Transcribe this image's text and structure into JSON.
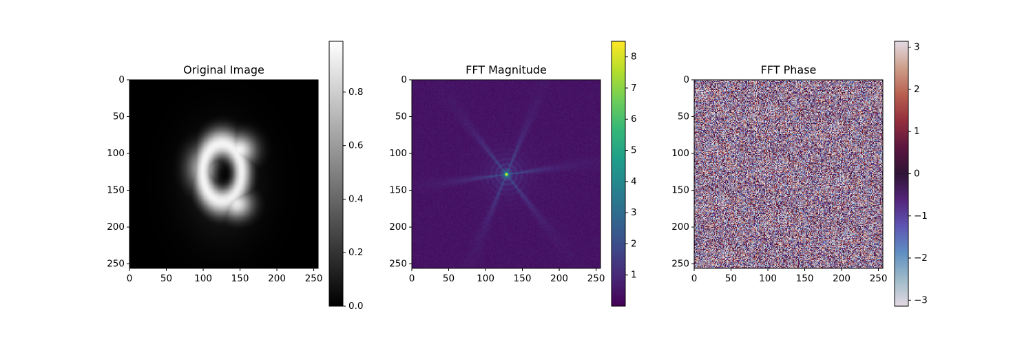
{
  "chart_data": [
    {
      "type": "heatmap",
      "title": "Original Image",
      "colormap": "gray",
      "xlim": [
        0,
        256
      ],
      "ylim": [
        256,
        0
      ],
      "xticks": [
        0,
        50,
        100,
        150,
        200,
        250
      ],
      "yticks": [
        0,
        50,
        100,
        150,
        200,
        250
      ],
      "xtick_labels": [
        "0",
        "50",
        "100",
        "150",
        "200",
        "250"
      ],
      "ytick_labels": [
        "0",
        "50",
        "100",
        "150",
        "200",
        "250"
      ],
      "colorbar": {
        "range": [
          0.0,
          0.99
        ],
        "ticks": [
          0.0,
          0.2,
          0.4,
          0.6,
          0.8
        ],
        "tick_labels": [
          "0.0",
          "0.2",
          "0.4",
          "0.6",
          "0.8"
        ]
      },
      "features": [
        {
          "kind": "ring",
          "cx": 125,
          "cy": 125,
          "rx": 42,
          "ry": 62,
          "thickness": 22,
          "peak": 0.95
        },
        {
          "kind": "hole",
          "cx": 128,
          "cy": 128,
          "peak": 0.05
        }
      ]
    },
    {
      "type": "heatmap",
      "title": "FFT Magnitude",
      "colormap": "viridis",
      "xlim": [
        0,
        256
      ],
      "ylim": [
        256,
        0
      ],
      "xticks": [
        0,
        50,
        100,
        150,
        200,
        250
      ],
      "yticks": [
        0,
        50,
        100,
        150,
        200,
        250
      ],
      "xtick_labels": [
        "0",
        "50",
        "100",
        "150",
        "200",
        "250"
      ],
      "ytick_labels": [
        "0",
        "50",
        "100",
        "150",
        "200",
        "250"
      ],
      "colorbar": {
        "range": [
          0.0,
          8.5
        ],
        "ticks": [
          1,
          2,
          3,
          4,
          5,
          6,
          7,
          8
        ],
        "tick_labels": [
          "1",
          "2",
          "3",
          "4",
          "5",
          "6",
          "7",
          "8"
        ]
      },
      "features": [
        {
          "kind": "peak",
          "cx": 128,
          "cy": 128,
          "peak": 8.5
        }
      ]
    },
    {
      "type": "heatmap",
      "title": "FFT Phase",
      "colormap": "twilight",
      "xlim": [
        0,
        256
      ],
      "ylim": [
        256,
        0
      ],
      "xticks": [
        0,
        50,
        100,
        150,
        200,
        250
      ],
      "yticks": [
        0,
        50,
        100,
        150,
        200,
        250
      ],
      "xtick_labels": [
        "0",
        "50",
        "100",
        "150",
        "200",
        "250"
      ],
      "ytick_labels": [
        "0",
        "50",
        "100",
        "150",
        "200",
        "250"
      ],
      "colorbar": {
        "range": [
          -3.14159,
          3.14159
        ],
        "ticks": [
          -3,
          -2,
          -1,
          0,
          1,
          2,
          3
        ],
        "tick_labels": [
          "−3",
          "−2",
          "−1",
          "0",
          "1",
          "2",
          "3"
        ]
      }
    }
  ]
}
